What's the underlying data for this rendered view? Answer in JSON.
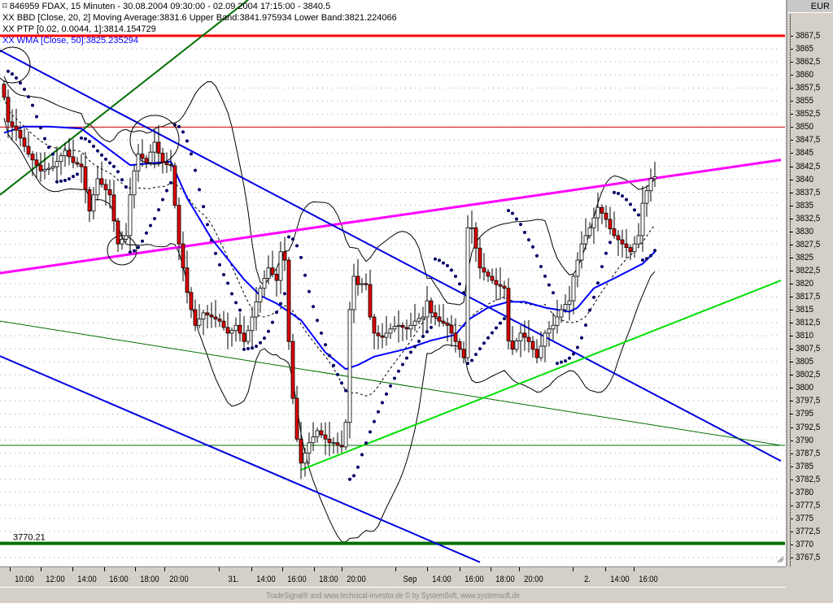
{
  "legend": {
    "title": "846959  FDAX, 15 Minuten - 30.08.2004 09:30:00 - 02.09.2004 17:15:00 - 3840.5",
    "bbd": "XX BBD [Close, 20, 2] Moving Average:3831.6 Upper Band:3841.975934 Lower Band:3821.224066",
    "ptp": "XX PTP [0.02, 0.0044, 1]:3814.154729",
    "wma": "XX WMA [Close, 50]:3825.235294"
  },
  "currency": "EUR",
  "footer": "TradeSignal® and www.technical-investor.de © by SystemSoft, www.systemsoft.de",
  "chart_data": {
    "type": "candlestick",
    "title": "846959  FDAX, 15 Minuten",
    "interval": "15 Minuten",
    "ylim": [
      3766,
      3870
    ],
    "grid": "horizontal dotted",
    "y_ticks": [
      "3767,5",
      "3770",
      "3772,5",
      "3775",
      "3777,5",
      "3780",
      "3782,5",
      "3785",
      "3787,5",
      "3790",
      "3792,5",
      "3795",
      "3797,5",
      "3800",
      "3802,5",
      "3805",
      "3807,5",
      "3810",
      "3812,5",
      "3815",
      "3817,5",
      "3820",
      "3822,5",
      "3825",
      "3827,5",
      "3830",
      "3832,5",
      "3835",
      "3837,5",
      "3840",
      "3842,5",
      "3845",
      "3847,5",
      "3850",
      "3852,5",
      "3855",
      "3857,5",
      "3860",
      "3862,5",
      "3865",
      "3867,5"
    ],
    "x_ticks": [
      "10:00",
      "12:00",
      "14:00",
      "16:00",
      "18:00",
      "20:00",
      "31.",
      "14:00",
      "16:00",
      "18:00",
      "20:00",
      "Sep",
      "14:00",
      "16:00",
      "18:00",
      "20:00",
      "2.",
      "14:00",
      "16:00"
    ],
    "colors": {
      "up": "#ffffff",
      "down": "#e00000",
      "wma": "#0000ff",
      "sar": "#000066"
    },
    "closes": [
      3855.7,
      3851.0,
      3850.2,
      3849.4,
      3847.9,
      3846.3,
      3844.8,
      3843.7,
      3842.7,
      3841.6,
      3841.9,
      3842.1,
      3842.4,
      3843.4,
      3844.5,
      3845.5,
      3844.3,
      3843.2,
      3842.9,
      3842.4,
      3838.0,
      3833.9,
      3837.0,
      3840.1,
      3839.0,
      3838.0,
      3837.0,
      3832.0,
      3827.6,
      3828.5,
      3829.2,
      3837.0,
      3841.6,
      3844.8,
      3844.0,
      3843.2,
      3845.2,
      3847.1,
      3845.0,
      3843.2,
      3842.8,
      3842.6,
      3835.0,
      3827.6,
      3823.0,
      3818.3,
      3815.0,
      3812.0,
      3813.2,
      3814.4,
      3814.0,
      3813.6,
      3813.2,
      3812.8,
      3811.6,
      3810.5,
      3811.0,
      3812.0,
      3810.5,
      3808.9,
      3811.0,
      3813.6,
      3816.5,
      3819.1,
      3821.0,
      3823.0,
      3821.8,
      3820.6,
      3826.1,
      3824.5,
      3808.9,
      3798.0,
      3790.2,
      3785.6,
      3787.5,
      3789.5,
      3790.6,
      3791.8,
      3791.0,
      3790.2,
      3789.5,
      3789.5,
      3789.0,
      3788.7,
      3793.4,
      3815.0,
      3821.4,
      3819.8,
      3820.0,
      3819.8,
      3813.6,
      3810.5,
      3810.0,
      3809.7,
      3810.5,
      3811.3,
      3811.8,
      3812.0,
      3811.6,
      3811.3,
      3812.0,
      3812.8,
      3813.3,
      3813.6,
      3816.7,
      3814.4,
      3813.6,
      3812.8,
      3812.4,
      3812.0,
      3810.5,
      3808.9,
      3807.4,
      3805.8,
      3830.7,
      3830.7,
      3826.8,
      3823.0,
      3822.2,
      3821.4,
      3820.6,
      3819.8,
      3819.5,
      3819.1,
      3809.0,
      3807.4,
      3809.0,
      3810.5,
      3809.7,
      3808.9,
      3807.4,
      3805.8,
      3808.0,
      3810.5,
      3811.3,
      3812.0,
      3813.6,
      3815.0,
      3816.0,
      3816.7,
      3821.4,
      3824.5,
      3827.6,
      3829.2,
      3830.7,
      3832.6,
      3834.6,
      3833.5,
      3832.3,
      3830.5,
      3829.2,
      3828.4,
      3827.6,
      3826.9,
      3826.1,
      3827.6,
      3829.2,
      3835.4,
      3837.8,
      3840.1,
      3840.5
    ],
    "wma_points": [
      [
        0,
        3848.9
      ],
      [
        5,
        3850.1
      ],
      [
        11,
        3850.1
      ],
      [
        19,
        3849.7
      ],
      [
        31,
        3842.7
      ],
      [
        41,
        3843.4
      ],
      [
        45,
        3836.4
      ],
      [
        51,
        3828.6
      ],
      [
        59,
        3820.8
      ],
      [
        63,
        3817.7
      ],
      [
        67,
        3816.2
      ],
      [
        73,
        3813.0
      ],
      [
        79,
        3806.8
      ],
      [
        84,
        3803.6
      ],
      [
        87,
        3804.4
      ],
      [
        91,
        3806.0
      ],
      [
        99,
        3807.5
      ],
      [
        105,
        3809.1
      ],
      [
        111,
        3810.2
      ],
      [
        114,
        3813.0
      ],
      [
        119,
        3815.4
      ],
      [
        124,
        3816.5
      ],
      [
        128,
        3816.5
      ],
      [
        133,
        3815.4
      ],
      [
        139,
        3814.6
      ],
      [
        141,
        3815.4
      ],
      [
        145,
        3819.1
      ],
      [
        151,
        3821.4
      ],
      [
        157,
        3823.8
      ],
      [
        160,
        3826.1
      ]
    ],
    "trendlines": [
      {
        "name": "resistance-red",
        "color": "#ff0000",
        "width": 3,
        "from": [
          -1,
          3867.5
        ],
        "to": [
          192,
          3867.5
        ]
      },
      {
        "name": "level-3850",
        "color": "#cc0000",
        "width": 1,
        "from": [
          -1,
          3850.0
        ],
        "to": [
          192,
          3850.0
        ]
      },
      {
        "name": "support-3770",
        "color": "#007000",
        "width": 4,
        "from": [
          -1,
          3770.21
        ],
        "to": [
          192,
          3770.21
        ],
        "label": "3770.21"
      },
      {
        "name": "level-3789",
        "color": "#007000",
        "width": 1,
        "from": [
          -1,
          3789.0
        ],
        "to": [
          192,
          3789.0
        ]
      },
      {
        "name": "steep-green",
        "color": "#007000",
        "width": 2,
        "from": [
          -1,
          3837.0
        ],
        "to": [
          61,
          3875.0
        ]
      },
      {
        "name": "magenta",
        "color": "#ff00ff",
        "width": 3,
        "from": [
          -1,
          3822.0
        ],
        "to": [
          191,
          3843.7
        ]
      },
      {
        "name": "upper-channel",
        "color": "#0000e0",
        "width": 2,
        "from": [
          -1,
          3864.7
        ],
        "to": [
          191,
          3786.0
        ]
      },
      {
        "name": "lower-channel",
        "color": "#0000e0",
        "width": 2,
        "from": [
          -1,
          3806.1
        ],
        "to": [
          117,
          3766.6
        ]
      },
      {
        "name": "thin-green",
        "color": "#007000",
        "width": 1,
        "from": [
          -1,
          3812.8
        ],
        "to": [
          191,
          3789.0
        ]
      },
      {
        "name": "light-green",
        "color": "#00e000",
        "width": 2,
        "from": [
          73,
          3784.3
        ],
        "to": [
          191,
          3820.6
        ]
      }
    ]
  }
}
